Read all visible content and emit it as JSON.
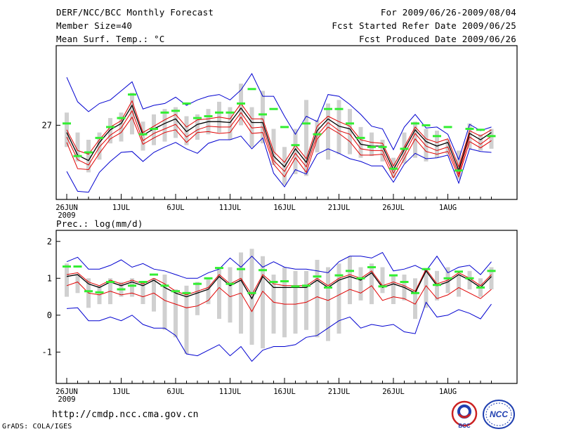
{
  "header": {
    "title": "DERF/NCC/BCC Monthly Forecast",
    "member_size": "Member Size=40",
    "variable1": "Mean Surf. Temp.: °C",
    "forecast_period": "For 2009/06/26-2009/08/04",
    "refer_date": "Fcst Started Refer Date 2009/06/25",
    "produced_date": "Fcst Produced Date 2009/06/26"
  },
  "lower_header": {
    "variable2": "Prec.: log(mm/d)"
  },
  "footer": {
    "url": "http://cmdp.ncc.cma.gov.cn",
    "grads": "GrADS: COLA/IGES",
    "logo1": "BCC",
    "logo2": "NCC"
  },
  "colors": {
    "envelope": "#0000d0",
    "spread": "#e00000",
    "mean": "#000000",
    "bar": "#d0d0d0",
    "marker": "#33ee33"
  },
  "chart_data": [
    {
      "type": "line",
      "title": "Mean Surf. Temp.: °C",
      "x_dates": [
        "26JUN",
        "27JUN",
        "28JUN",
        "29JUN",
        "30JUN",
        "1JUL",
        "2JUL",
        "3JUL",
        "4JUL",
        "5JUL",
        "6JUL",
        "7JUL",
        "8JUL",
        "9JUL",
        "10JUL",
        "11JUL",
        "12JUL",
        "13JUL",
        "14JUL",
        "15JUL",
        "16JUL",
        "17JUL",
        "18JUL",
        "19JUL",
        "20JUL",
        "21JUL",
        "22JUL",
        "23JUL",
        "24JUL",
        "25JUL",
        "26JUL",
        "27JUL",
        "28JUL",
        "29JUL",
        "30JUL",
        "31JUL",
        "1AUG",
        "2AUG",
        "3AUG",
        "4AUG"
      ],
      "x_tick_labels": [
        "26JUN",
        "1JUL",
        "6JUL",
        "11JUL",
        "16JUL",
        "21JUL",
        "26JUL",
        "1AUG"
      ],
      "x_tick_index": [
        0,
        5,
        10,
        15,
        20,
        25,
        30,
        35
      ],
      "x_sublabel": "2009",
      "y_tick_labels": [
        "27"
      ],
      "y_tick_values": [
        27
      ],
      "ylim": [
        22.9,
        31.4
      ],
      "series": [
        {
          "name": "max",
          "values": [
            29.65,
            28.3,
            27.75,
            28.2,
            28.4,
            28.9,
            29.4,
            27.9,
            28.1,
            28.2,
            28.55,
            28.1,
            28.4,
            28.6,
            28.7,
            28.4,
            28.95,
            29.85,
            28.6,
            28.6,
            27.5,
            26.5,
            27.5,
            27.2,
            28.7,
            28.6,
            28.15,
            27.6,
            26.95,
            26.8,
            25.65,
            26.9,
            27.6,
            26.85,
            26.9,
            26.5,
            25.1,
            27.05,
            26.7,
            26.9
          ]
        },
        {
          "name": "upper",
          "values": [
            26.75,
            25.6,
            25.4,
            26.2,
            26.9,
            27.25,
            28.35,
            26.6,
            26.95,
            27.3,
            27.6,
            26.9,
            27.3,
            27.35,
            27.45,
            27.35,
            28.2,
            27.35,
            27.35,
            25.55,
            24.95,
            25.9,
            25.15,
            26.95,
            27.5,
            27.2,
            26.95,
            26.2,
            26.05,
            26.0,
            24.75,
            25.8,
            26.9,
            26.25,
            26.05,
            26.25,
            24.7,
            26.7,
            26.4,
            26.75
          ]
        },
        {
          "name": "mean",
          "values": [
            26.6,
            25.35,
            25.05,
            26.05,
            26.75,
            27.1,
            28.1,
            26.45,
            26.8,
            27.1,
            27.35,
            26.65,
            27.05,
            27.2,
            27.2,
            27.15,
            27.95,
            27.15,
            27.15,
            25.3,
            24.7,
            25.7,
            24.95,
            26.7,
            27.35,
            26.95,
            26.8,
            25.95,
            25.85,
            25.85,
            24.55,
            25.65,
            26.75,
            26.1,
            25.85,
            26.05,
            24.5,
            26.55,
            26.2,
            26.6
          ]
        },
        {
          "name": "lower",
          "values": [
            26.35,
            25.1,
            24.8,
            25.8,
            26.45,
            26.85,
            27.8,
            26.15,
            26.55,
            26.8,
            27.05,
            26.35,
            26.75,
            26.95,
            26.9,
            26.9,
            27.7,
            26.85,
            26.9,
            25.05,
            24.45,
            25.45,
            24.7,
            26.45,
            27.15,
            26.7,
            26.5,
            25.7,
            25.6,
            25.6,
            24.35,
            25.4,
            26.55,
            25.85,
            25.6,
            25.8,
            24.3,
            26.35,
            25.95,
            26.4
          ]
        },
        {
          "name": "lower_red",
          "values": [
            26.05,
            24.6,
            24.55,
            25.45,
            26.25,
            26.6,
            27.45,
            25.95,
            26.3,
            26.6,
            26.75,
            26.05,
            26.6,
            26.65,
            26.55,
            26.6,
            27.45,
            26.55,
            26.6,
            24.85,
            24.15,
            25.2,
            24.4,
            26.25,
            26.9,
            26.55,
            26.1,
            25.35,
            25.35,
            25.4,
            24.1,
            25.15,
            26.25,
            25.55,
            25.4,
            25.55,
            24.15,
            26.1,
            25.75,
            26.15
          ]
        },
        {
          "name": "min",
          "values": [
            24.45,
            23.35,
            23.3,
            24.4,
            25.0,
            25.5,
            25.55,
            25.0,
            25.5,
            25.8,
            26.05,
            25.7,
            25.45,
            26.0,
            26.2,
            26.2,
            26.4,
            25.7,
            26.3,
            24.35,
            23.6,
            24.55,
            24.3,
            25.4,
            25.7,
            25.45,
            25.15,
            25.0,
            24.75,
            24.75,
            23.85,
            24.85,
            25.45,
            25.15,
            25.2,
            25.35,
            23.8,
            25.7,
            25.55,
            25.5
          ]
        }
      ],
      "bars": [
        {
          "lo": 25.8,
          "hi": 27.7
        },
        {
          "lo": 25.0,
          "hi": 26.6
        },
        {
          "lo": 24.4,
          "hi": 26.2
        },
        {
          "lo": 25.1,
          "hi": 26.6
        },
        {
          "lo": 26.0,
          "hi": 27.4
        },
        {
          "lo": 26.1,
          "hi": 27.7
        },
        {
          "lo": 26.5,
          "hi": 28.8
        },
        {
          "lo": 25.6,
          "hi": 27.2
        },
        {
          "lo": 25.9,
          "hi": 27.6
        },
        {
          "lo": 26.1,
          "hi": 27.9
        },
        {
          "lo": 26.3,
          "hi": 28.0
        },
        {
          "lo": 25.9,
          "hi": 27.5
        },
        {
          "lo": 26.2,
          "hi": 27.6
        },
        {
          "lo": 26.5,
          "hi": 27.9
        },
        {
          "lo": 26.6,
          "hi": 28.3
        },
        {
          "lo": 26.2,
          "hi": 28.0
        },
        {
          "lo": 27.0,
          "hi": 29.3
        },
        {
          "lo": 25.8,
          "hi": 28.0
        },
        {
          "lo": 26.0,
          "hi": 28.9
        },
        {
          "lo": 24.8,
          "hi": 26.8
        },
        {
          "lo": 23.7,
          "hi": 25.8
        },
        {
          "lo": 24.3,
          "hi": 26.8
        },
        {
          "lo": 24.2,
          "hi": 28.4
        },
        {
          "lo": 25.5,
          "hi": 27.3
        },
        {
          "lo": 25.1,
          "hi": 28.2
        },
        {
          "lo": 25.4,
          "hi": 28.4
        },
        {
          "lo": 25.4,
          "hi": 27.9
        },
        {
          "lo": 25.2,
          "hi": 26.9
        },
        {
          "lo": 25.3,
          "hi": 26.6
        },
        {
          "lo": 25.0,
          "hi": 26.2
        },
        {
          "lo": 24.1,
          "hi": 25.2
        },
        {
          "lo": 24.9,
          "hi": 26.6
        },
        {
          "lo": 25.2,
          "hi": 27.2
        },
        {
          "lo": 25.0,
          "hi": 26.8
        },
        {
          "lo": 25.2,
          "hi": 26.7
        },
        {
          "lo": 25.4,
          "hi": 26.2
        },
        {
          "lo": 24.0,
          "hi": 25.6
        },
        {
          "lo": 25.7,
          "hi": 27.1
        },
        {
          "lo": 25.6,
          "hi": 26.5
        },
        {
          "lo": 25.7,
          "hi": 26.8
        }
      ],
      "markers": [
        27.1,
        25.3,
        25.5,
        26.3,
        26.9,
        27.4,
        28.7,
        26.5,
        26.8,
        27.7,
        27.8,
        28.2,
        27.4,
        27.5,
        27.7,
        27.7,
        28.2,
        29.0,
        27.6,
        27.9,
        26.9,
        25.9,
        27.1,
        26.5,
        27.9,
        27.9,
        27.1,
        26.3,
        25.8,
        25.8,
        24.6,
        25.7,
        27.1,
        27.0,
        26.4,
        26.9,
        24.5,
        26.8,
        26.75,
        26.4
      ]
    },
    {
      "type": "line",
      "title": "Prec.: log(mm/d)",
      "x_dates": [
        "26JUN",
        "27JUN",
        "28JUN",
        "29JUN",
        "30JUN",
        "1JUL",
        "2JUL",
        "3JUL",
        "4JUL",
        "5JUL",
        "6JUL",
        "7JUL",
        "8JUL",
        "9JUL",
        "10JUL",
        "11JUL",
        "12JUL",
        "13JUL",
        "14JUL",
        "15JUL",
        "16JUL",
        "17JUL",
        "18JUL",
        "19JUL",
        "20JUL",
        "21JUL",
        "22JUL",
        "23JUL",
        "24JUL",
        "25JUL",
        "26JUL",
        "27JUL",
        "28JUL",
        "29JUL",
        "30JUL",
        "31JUL",
        "1AUG",
        "2AUG",
        "3AUG",
        "4AUG"
      ],
      "x_tick_labels": [
        "26JUN",
        "1JUL",
        "6JUL",
        "11JUL",
        "16JUL",
        "21JUL",
        "26JUL",
        "1AUG"
      ],
      "x_tick_index": [
        0,
        5,
        10,
        15,
        20,
        25,
        30,
        35
      ],
      "x_sublabel": "2009",
      "y_tick_labels": [
        "2",
        "1",
        "0",
        "-1"
      ],
      "y_tick_values": [
        2,
        1,
        0,
        -1
      ],
      "ylim": [
        -1.85,
        2.3
      ],
      "series": [
        {
          "name": "max",
          "values": [
            1.45,
            1.57,
            1.25,
            1.25,
            1.35,
            1.5,
            1.3,
            1.4,
            1.25,
            1.2,
            1.1,
            1.0,
            1.0,
            1.15,
            1.25,
            1.55,
            1.3,
            1.6,
            1.3,
            1.45,
            1.3,
            1.25,
            1.25,
            1.2,
            1.15,
            1.45,
            1.6,
            1.6,
            1.55,
            1.7,
            1.2,
            1.25,
            1.35,
            1.2,
            1.6,
            1.15,
            1.3,
            1.35,
            1.1,
            1.45
          ]
        },
        {
          "name": "upper",
          "values": [
            1.1,
            1.15,
            0.9,
            0.8,
            0.95,
            0.85,
            0.95,
            0.85,
            1.0,
            0.85,
            0.65,
            0.55,
            0.65,
            0.75,
            1.1,
            0.85,
            1.0,
            0.55,
            1.1,
            0.85,
            0.8,
            0.8,
            0.8,
            1.0,
            0.8,
            1.0,
            1.1,
            1.0,
            1.2,
            0.8,
            0.9,
            0.8,
            0.65,
            1.25,
            0.85,
            0.95,
            1.15,
            1.0,
            0.8,
            1.1
          ]
        },
        {
          "name": "mean",
          "values": [
            1.05,
            1.1,
            0.85,
            0.75,
            0.9,
            0.8,
            0.9,
            0.8,
            0.95,
            0.75,
            0.6,
            0.5,
            0.6,
            0.7,
            1.05,
            0.8,
            0.95,
            0.45,
            1.05,
            0.75,
            0.75,
            0.75,
            0.75,
            0.95,
            0.75,
            0.95,
            1.05,
            0.95,
            1.15,
            0.75,
            0.85,
            0.75,
            0.6,
            1.2,
            0.8,
            0.9,
            1.1,
            0.95,
            0.75,
            1.05
          ]
        },
        {
          "name": "lower_red",
          "values": [
            0.8,
            0.9,
            0.6,
            0.55,
            0.65,
            0.55,
            0.6,
            0.5,
            0.6,
            0.4,
            0.3,
            0.2,
            0.25,
            0.4,
            0.75,
            0.5,
            0.6,
            0.1,
            0.65,
            0.35,
            0.3,
            0.3,
            0.35,
            0.5,
            0.4,
            0.55,
            0.7,
            0.6,
            0.8,
            0.4,
            0.5,
            0.45,
            0.3,
            0.8,
            0.45,
            0.55,
            0.75,
            0.6,
            0.45,
            0.7
          ]
        },
        {
          "name": "min",
          "values": [
            0.18,
            0.2,
            -0.15,
            -0.15,
            -0.05,
            -0.15,
            0.0,
            -0.25,
            -0.35,
            -0.35,
            -0.55,
            -1.05,
            -1.1,
            -0.95,
            -0.8,
            -1.1,
            -0.85,
            -1.25,
            -0.95,
            -0.85,
            -0.85,
            -0.8,
            -0.6,
            -0.55,
            -0.35,
            -0.15,
            -0.05,
            -0.35,
            -0.25,
            -0.3,
            -0.25,
            -0.45,
            -0.5,
            0.35,
            -0.05,
            0.0,
            0.15,
            0.05,
            -0.1,
            0.3
          ]
        }
      ],
      "bars": [
        {
          "lo": 0.5,
          "hi": 1.4
        },
        {
          "lo": 0.6,
          "hi": 1.1
        },
        {
          "lo": 0.2,
          "hi": 1.0
        },
        {
          "lo": 0.3,
          "hi": 0.8
        },
        {
          "lo": 0.3,
          "hi": 1.0
        },
        {
          "lo": 0.5,
          "hi": 0.9
        },
        {
          "lo": 0.5,
          "hi": 1.0
        },
        {
          "lo": 0.3,
          "hi": 0.9
        },
        {
          "lo": 0.1,
          "hi": 1.0
        },
        {
          "lo": -0.4,
          "hi": 1.1
        },
        {
          "lo": -0.6,
          "hi": 0.7
        },
        {
          "lo": -1.05,
          "hi": 0.8
        },
        {
          "lo": 0.0,
          "hi": 0.9
        },
        {
          "lo": 0.3,
          "hi": 1.0
        },
        {
          "lo": -0.1,
          "hi": 1.3
        },
        {
          "lo": -0.2,
          "hi": 1.3
        },
        {
          "lo": -0.5,
          "hi": 1.7
        },
        {
          "lo": -0.8,
          "hi": 1.8
        },
        {
          "lo": -0.9,
          "hi": 1.6
        },
        {
          "lo": -0.5,
          "hi": 1.1
        },
        {
          "lo": -0.6,
          "hi": 1.3
        },
        {
          "lo": -0.5,
          "hi": 1.2
        },
        {
          "lo": -0.4,
          "hi": 1.2
        },
        {
          "lo": -0.6,
          "hi": 1.5
        },
        {
          "lo": -0.7,
          "hi": 1.3
        },
        {
          "lo": -0.5,
          "hi": 1.4
        },
        {
          "lo": 0.3,
          "hi": 1.6
        },
        {
          "lo": 0.4,
          "hi": 1.3
        },
        {
          "lo": 0.3,
          "hi": 1.4
        },
        {
          "lo": 0.6,
          "hi": 1.3
        },
        {
          "lo": 0.3,
          "hi": 1.1
        },
        {
          "lo": 0.4,
          "hi": 1.1
        },
        {
          "lo": -0.1,
          "hi": 1.0
        },
        {
          "lo": 0.2,
          "hi": 1.2
        },
        {
          "lo": 0.4,
          "hi": 1.2
        },
        {
          "lo": 0.6,
          "hi": 1.3
        },
        {
          "lo": 0.5,
          "hi": 1.1
        },
        {
          "lo": 0.7,
          "hi": 1.2
        },
        {
          "lo": 0.5,
          "hi": 1.0
        },
        {
          "lo": 0.7,
          "hi": 1.3
        }
      ],
      "markers": [
        1.32,
        1.32,
        0.65,
        0.62,
        0.9,
        0.7,
        0.8,
        0.9,
        1.1,
        0.8,
        0.65,
        0.6,
        0.85,
        1.0,
        1.28,
        0.85,
        1.25,
        0.6,
        1.22,
        0.9,
        0.92,
        0.78,
        0.8,
        1.05,
        0.75,
        1.08,
        1.2,
        1.0,
        1.3,
        0.78,
        1.08,
        0.9,
        0.6,
        1.25,
        0.82,
        1.0,
        1.18,
        1.0,
        0.75,
        1.2
      ]
    }
  ]
}
